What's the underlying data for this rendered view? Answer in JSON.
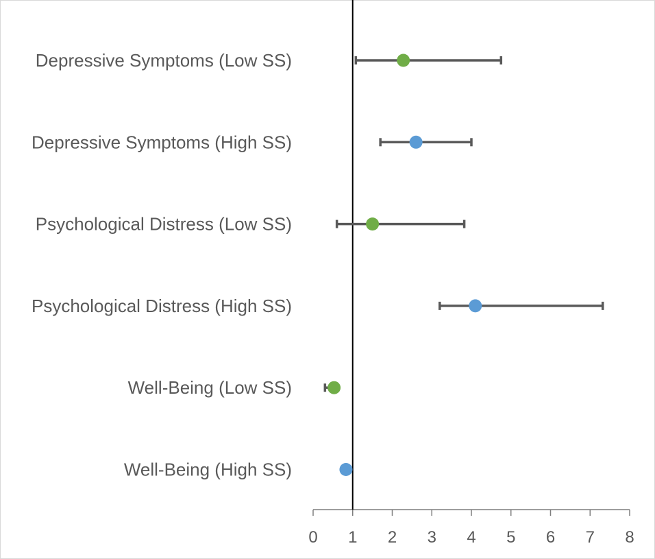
{
  "chart_data": {
    "type": "scatter",
    "title": "",
    "xlabel": "",
    "ylabel": "",
    "xlim": [
      0,
      8
    ],
    "x_ticks": [
      "0",
      "1",
      "2",
      "3",
      "4",
      "5",
      "6",
      "7",
      "8"
    ],
    "reference_line_x": 1,
    "grid": false,
    "legend": "none",
    "colors": {
      "low": "#70AD47",
      "high": "#5B9BD5",
      "error_bar": "#595959",
      "axis": "#000000",
      "text": "#595959"
    },
    "points": [
      {
        "label": "Depressive Symptoms (Low SS)",
        "group": "low",
        "x": 2.28,
        "lower": 1.08,
        "upper": 4.75
      },
      {
        "label": "Depressive Symptoms (High SS)",
        "group": "high",
        "x": 2.6,
        "lower": 1.7,
        "upper": 4.0
      },
      {
        "label": "Psychological Distress (Low SS)",
        "group": "low",
        "x": 1.5,
        "lower": 0.6,
        "upper": 3.82
      },
      {
        "label": "Psychological Distress (High SS)",
        "group": "high",
        "x": 4.1,
        "lower": 3.2,
        "upper": 7.32
      },
      {
        "label": "Well-Being (Low SS)",
        "group": "low",
        "x": 0.53,
        "lower": 0.3,
        "upper": 0.53
      },
      {
        "label": "Well-Being (High SS)",
        "group": "high",
        "x": 0.83,
        "lower": 0.83,
        "upper": 0.83
      }
    ]
  }
}
